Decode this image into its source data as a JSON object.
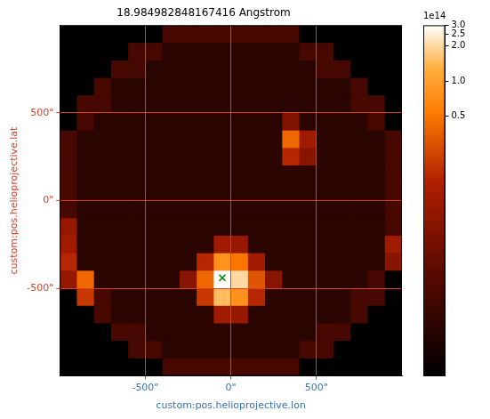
{
  "chart_data": {
    "type": "heatmap",
    "title": "18.984982848167416 Angstrom",
    "x_label": "custom:pos.helioprojective.lon",
    "y_label": "custom:pos.helioprojective.lat",
    "xlim": [
      -1000,
      1000
    ],
    "ylim": [
      -1000,
      1000
    ],
    "xticks": [
      {
        "value": -500,
        "label": "-500\""
      },
      {
        "value": 0,
        "label": "0\""
      },
      {
        "value": 500,
        "label": "500\""
      }
    ],
    "yticks": [
      {
        "value": -500,
        "label": "-500\""
      },
      {
        "value": 0,
        "label": "0\""
      },
      {
        "value": 500,
        "label": "500\""
      }
    ],
    "grid": true,
    "x_bins": [
      -1000,
      -900,
      -800,
      -700,
      -600,
      -500,
      -400,
      -300,
      -200,
      -100,
      0,
      100,
      200,
      300,
      400,
      500,
      600,
      700,
      800,
      900,
      1000
    ],
    "y_bins": [
      1000,
      900,
      800,
      700,
      600,
      500,
      400,
      300,
      200,
      100,
      0,
      -100,
      -200,
      -300,
      -400,
      -500,
      -600,
      -700,
      -800,
      -900,
      -1000
    ],
    "cells": [
      [
        3000000000.0,
        3000000000.0,
        3000000000.0,
        3000000000.0,
        20000000000.0,
        20000000000.0,
        1500000000000.0,
        1500000000000.0,
        1500000000000.0,
        1500000000000.0,
        1500000000000.0,
        1500000000000.0,
        1500000000000.0,
        1500000000000.0,
        20000000000.0,
        20000000000.0,
        3000000000.0,
        3000000000.0,
        3000000000.0,
        3000000000.0
      ],
      [
        3000000000.0,
        3000000000.0,
        20000000000.0,
        20000000000.0,
        1500000000000.0,
        1500000000000.0,
        800000000000.0,
        800000000000.0,
        800000000000.0,
        800000000000.0,
        800000000000.0,
        800000000000.0,
        800000000000.0,
        800000000000.0,
        1500000000000.0,
        1500000000000.0,
        20000000000.0,
        20000000000.0,
        3000000000.0,
        3000000000.0
      ],
      [
        3000000000.0,
        20000000000.0,
        20000000000.0,
        1500000000000.0,
        1500000000000.0,
        800000000000.0,
        800000000000.0,
        800000000000.0,
        800000000000.0,
        800000000000.0,
        800000000000.0,
        800000000000.0,
        800000000000.0,
        800000000000.0,
        800000000000.0,
        1500000000000.0,
        1500000000000.0,
        20000000000.0,
        20000000000.0,
        3000000000.0
      ],
      [
        3000000000.0,
        20000000000.0,
        1500000000000.0,
        800000000000.0,
        800000000000.0,
        800000000000.0,
        800000000000.0,
        800000000000.0,
        800000000000.0,
        800000000000.0,
        800000000000.0,
        800000000000.0,
        800000000000.0,
        800000000000.0,
        800000000000.0,
        800000000000.0,
        800000000000.0,
        1500000000000.0,
        20000000000.0,
        3000000000.0
      ],
      [
        20000000000.0,
        1500000000000.0,
        1500000000000.0,
        800000000000.0,
        800000000000.0,
        800000000000.0,
        800000000000.0,
        800000000000.0,
        800000000000.0,
        800000000000.0,
        800000000000.0,
        800000000000.0,
        800000000000.0,
        800000000000.0,
        800000000000.0,
        800000000000.0,
        800000000000.0,
        1500000000000.0,
        1500000000000.0,
        20000000000.0
      ],
      [
        20000000000.0,
        1500000000000.0,
        800000000000.0,
        800000000000.0,
        800000000000.0,
        800000000000.0,
        800000000000.0,
        800000000000.0,
        800000000000.0,
        800000000000.0,
        800000000000.0,
        800000000000.0,
        800000000000.0,
        5000000000000.0,
        800000000000.0,
        800000000000.0,
        800000000000.0,
        800000000000.0,
        1500000000000.0,
        20000000000.0
      ],
      [
        1500000000000.0,
        800000000000.0,
        800000000000.0,
        800000000000.0,
        800000000000.0,
        800000000000.0,
        800000000000.0,
        800000000000.0,
        800000000000.0,
        800000000000.0,
        800000000000.0,
        800000000000.0,
        800000000000.0,
        40000000000000.0,
        10000000000000.0,
        800000000000.0,
        800000000000.0,
        800000000000.0,
        800000000000.0,
        1500000000000.0
      ],
      [
        1500000000000.0,
        800000000000.0,
        800000000000.0,
        800000000000.0,
        800000000000.0,
        800000000000.0,
        800000000000.0,
        800000000000.0,
        800000000000.0,
        800000000000.0,
        800000000000.0,
        800000000000.0,
        800000000000.0,
        15000000000000.0,
        6000000000000.0,
        800000000000.0,
        800000000000.0,
        800000000000.0,
        800000000000.0,
        1500000000000.0
      ],
      [
        1500000000000.0,
        800000000000.0,
        800000000000.0,
        800000000000.0,
        800000000000.0,
        800000000000.0,
        800000000000.0,
        800000000000.0,
        800000000000.0,
        800000000000.0,
        800000000000.0,
        800000000000.0,
        800000000000.0,
        800000000000.0,
        800000000000.0,
        800000000000.0,
        800000000000.0,
        800000000000.0,
        800000000000.0,
        1500000000000.0
      ],
      [
        1500000000000.0,
        800000000000.0,
        800000000000.0,
        800000000000.0,
        800000000000.0,
        800000000000.0,
        800000000000.0,
        800000000000.0,
        800000000000.0,
        800000000000.0,
        800000000000.0,
        800000000000.0,
        800000000000.0,
        800000000000.0,
        800000000000.0,
        800000000000.0,
        800000000000.0,
        800000000000.0,
        800000000000.0,
        1500000000000.0
      ],
      [
        1500000000000.0,
        800000000000.0,
        800000000000.0,
        800000000000.0,
        800000000000.0,
        800000000000.0,
        800000000000.0,
        800000000000.0,
        800000000000.0,
        800000000000.0,
        800000000000.0,
        800000000000.0,
        800000000000.0,
        800000000000.0,
        800000000000.0,
        800000000000.0,
        800000000000.0,
        800000000000.0,
        800000000000.0,
        1500000000000.0
      ],
      [
        8000000000000.0,
        800000000000.0,
        800000000000.0,
        800000000000.0,
        800000000000.0,
        800000000000.0,
        800000000000.0,
        800000000000.0,
        800000000000.0,
        800000000000.0,
        800000000000.0,
        800000000000.0,
        800000000000.0,
        800000000000.0,
        800000000000.0,
        800000000000.0,
        800000000000.0,
        800000000000.0,
        800000000000.0,
        1500000000000.0
      ],
      [
        10000000000000.0,
        800000000000.0,
        800000000000.0,
        800000000000.0,
        800000000000.0,
        800000000000.0,
        800000000000.0,
        800000000000.0,
        800000000000.0,
        10000000000000.0,
        8000000000000.0,
        800000000000.0,
        800000000000.0,
        800000000000.0,
        800000000000.0,
        800000000000.0,
        800000000000.0,
        800000000000.0,
        800000000000.0,
        10000000000000.0
      ],
      [
        15000000000000.0,
        800000000000.0,
        800000000000.0,
        800000000000.0,
        800000000000.0,
        800000000000.0,
        800000000000.0,
        800000000000.0,
        15000000000000.0,
        80000000000000.0,
        50000000000000.0,
        10000000000000.0,
        800000000000.0,
        800000000000.0,
        800000000000.0,
        800000000000.0,
        800000000000.0,
        800000000000.0,
        800000000000.0,
        6000000000000.0
      ],
      [
        8000000000000.0,
        40000000000000.0,
        800000000000.0,
        800000000000.0,
        800000000000.0,
        800000000000.0,
        800000000000.0,
        6000000000000.0,
        40000000000000.0,
        300000000000000.0,
        200000000000000.0,
        30000000000000.0,
        6000000000000.0,
        800000000000.0,
        800000000000.0,
        800000000000.0,
        800000000000.0,
        800000000000.0,
        1500000000000.0,
        20000000000.0
      ],
      [
        20000000000.0,
        20000000000000.0,
        1500000000000.0,
        800000000000.0,
        800000000000.0,
        800000000000.0,
        800000000000.0,
        800000000000.0,
        20000000000000.0,
        150000000000000.0,
        80000000000000.0,
        15000000000000.0,
        800000000000.0,
        800000000000.0,
        800000000000.0,
        800000000000.0,
        800000000000.0,
        1500000000000.0,
        1500000000000.0,
        20000000000.0
      ],
      [
        3000000000.0,
        20000000000.0,
        1500000000000.0,
        800000000000.0,
        800000000000.0,
        800000000000.0,
        800000000000.0,
        800000000000.0,
        800000000000.0,
        10000000000000.0,
        8000000000000.0,
        800000000000.0,
        800000000000.0,
        800000000000.0,
        800000000000.0,
        800000000000.0,
        800000000000.0,
        1500000000000.0,
        20000000000.0,
        3000000000.0
      ],
      [
        3000000000.0,
        20000000000.0,
        20000000000.0,
        1500000000000.0,
        1500000000000.0,
        800000000000.0,
        800000000000.0,
        800000000000.0,
        800000000000.0,
        800000000000.0,
        800000000000.0,
        800000000000.0,
        800000000000.0,
        800000000000.0,
        800000000000.0,
        1500000000000.0,
        1500000000000.0,
        20000000000.0,
        20000000000.0,
        3000000000.0
      ],
      [
        3000000000.0,
        3000000000.0,
        20000000000.0,
        20000000000.0,
        1500000000000.0,
        1500000000000.0,
        800000000000.0,
        800000000000.0,
        800000000000.0,
        800000000000.0,
        800000000000.0,
        800000000000.0,
        800000000000.0,
        800000000000.0,
        1500000000000.0,
        1500000000000.0,
        20000000000.0,
        20000000000.0,
        3000000000.0,
        3000000000.0
      ],
      [
        3000000000.0,
        3000000000.0,
        3000000000.0,
        3000000000.0,
        20000000000.0,
        20000000000.0,
        1500000000000.0,
        1500000000000.0,
        1500000000000.0,
        1500000000000.0,
        1500000000000.0,
        1500000000000.0,
        1500000000000.0,
        1500000000000.0,
        20000000000.0,
        20000000000.0,
        3000000000.0,
        3000000000.0,
        3000000000.0,
        3000000000.0
      ]
    ],
    "colorbar": {
      "range": [
        300000000000.0,
        300000000000000.0
      ],
      "log": true,
      "ticks": [
        {
          "value": 50000000000000.0,
          "label": "0.5"
        },
        {
          "value": 100000000000000.0,
          "label": "1.0"
        },
        {
          "value": 200000000000000.0,
          "label": "2.0"
        },
        {
          "value": 250000000000000.0,
          "label": "2.5"
        },
        {
          "value": 300000000000000.0,
          "label": "3.0"
        }
      ],
      "offset_label": "1e14"
    },
    "series": [
      {
        "type": "scatter",
        "x": [
          -50
        ],
        "y": [
          -440
        ],
        "color": "green",
        "marker": "x"
      }
    ]
  }
}
